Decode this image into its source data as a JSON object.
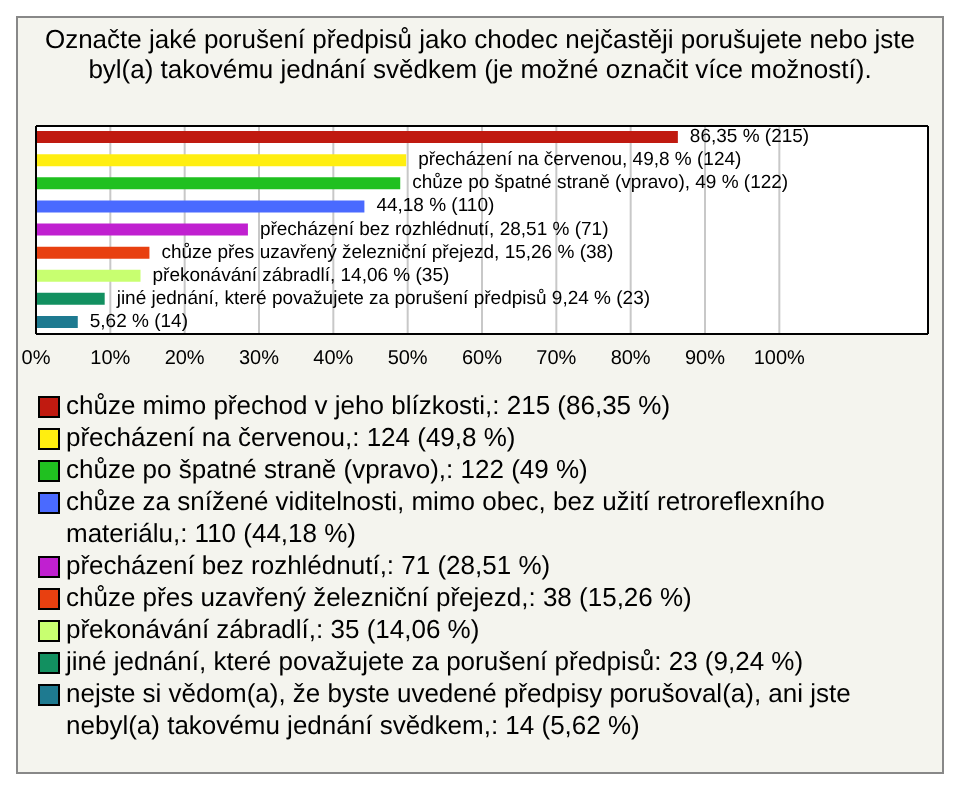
{
  "chart_data": {
    "type": "bar",
    "orientation": "horizontal",
    "stacked": true,
    "title": "Označte jaké porušení předpisů jako chodec nejčastěji porušujete nebo jste byl(a) takovému jednání svědkem (je možné označit více možností).",
    "categories": [
      null,
      null,
      null,
      null,
      null,
      null,
      null,
      null,
      null
    ],
    "series": [
      {
        "name": "chůze mimo přechod v jeho blízkosti,: 215 (86,35 %)",
        "color": "#c01a10",
        "values": [
          86.35,
          null,
          null,
          null,
          null,
          null,
          null,
          null,
          null
        ],
        "value_labels": [
          "86,35 % (215)",
          null,
          null,
          null,
          null,
          null,
          null,
          null,
          null
        ]
      },
      {
        "name": "přecházení na červenou,: 124 (49,8 %)",
        "color": "#ffee10",
        "values": [
          null,
          49.8,
          null,
          null,
          null,
          null,
          null,
          null,
          null
        ],
        "value_labels": [
          null,
          "přecházení na červenou, 49,8 % (124)",
          null,
          null,
          null,
          null,
          null,
          null,
          null
        ]
      },
      {
        "name": "chůze po špatné straně (vpravo),: 122 (49 %)",
        "color": "#20c020",
        "values": [
          null,
          null,
          49,
          null,
          null,
          null,
          null,
          null,
          null
        ],
        "value_labels": [
          null,
          null,
          "chůze po špatné straně (vpravo), 49 % (122)",
          null,
          null,
          null,
          null,
          null,
          null
        ]
      },
      {
        "name": "chůze za snížené viditelnosti, mimo obec, bez užití retroreflexního materiálu,: 110 (44,18 %)",
        "color": "#4a6aff",
        "values": [
          null,
          null,
          null,
          44.18,
          null,
          null,
          null,
          null,
          null
        ],
        "value_labels": [
          null,
          null,
          null,
          "44,18 % (110)",
          null,
          null,
          null,
          null,
          null
        ]
      },
      {
        "name": "přecházení bez rozhlédnutí,: 71 (28,51 %)",
        "color": "#c020d0",
        "values": [
          null,
          null,
          null,
          null,
          28.51,
          null,
          null,
          null,
          null
        ],
        "value_labels": [
          null,
          null,
          null,
          null,
          "přecházení bez rozhlédnutí, 28,51 % (71)",
          null,
          null,
          null,
          null
        ]
      },
      {
        "name": "chůze přes uzavřený železniční přejezd,: 38 (15,26 %)",
        "color": "#e84010",
        "values": [
          null,
          null,
          null,
          null,
          null,
          15.26,
          null,
          null,
          null
        ],
        "value_labels": [
          null,
          null,
          null,
          null,
          null,
          "chůze přes uzavřený železniční přejezd, 15,26 % (38)",
          null,
          null,
          null
        ]
      },
      {
        "name": "překonávání zábradlí,: 35 (14,06 %)",
        "color": "#c8ff70",
        "values": [
          null,
          null,
          null,
          null,
          null,
          null,
          14.06,
          null,
          null
        ],
        "value_labels": [
          null,
          null,
          null,
          null,
          null,
          null,
          "překonávání zábradlí, 14,06 % (35)",
          null,
          null
        ]
      },
      {
        "name": "jiné jednání, které považujete za porušení předpisů: 23 (9,24 %)",
        "color": "#129060",
        "values": [
          null,
          null,
          null,
          null,
          null,
          null,
          null,
          9.24,
          null
        ],
        "value_labels": [
          null,
          null,
          null,
          null,
          null,
          null,
          null,
          "jiné jednání, které považujete za porušení předpisů 9,24 % (23)",
          null
        ]
      },
      {
        "name": "nejste si vědom(a), že byste uvedené předpisy porušoval(a), ani jste nebyl(a) takovému jednání svědkem,: 14 (5,62 %)",
        "color": "#1e7a90",
        "values": [
          null,
          null,
          null,
          null,
          null,
          null,
          null,
          null,
          5.62
        ],
        "value_labels": [
          null,
          null,
          null,
          null,
          null,
          null,
          null,
          null,
          "5,62 % (14)"
        ]
      }
    ],
    "xlim": [
      0,
      120
    ],
    "xticks": [
      {
        "value": 0,
        "label": "0%"
      },
      {
        "value": 10,
        "label": "10%"
      },
      {
        "value": 20,
        "label": "20%"
      },
      {
        "value": 30,
        "label": "30%"
      },
      {
        "value": 40,
        "label": "40%"
      },
      {
        "value": 50,
        "label": "50%"
      },
      {
        "value": 60,
        "label": "60%"
      },
      {
        "value": 70,
        "label": "70%"
      },
      {
        "value": 80,
        "label": "80%"
      },
      {
        "value": 90,
        "label": "90%"
      },
      {
        "value": 100,
        "label": "100%"
      }
    ],
    "tick_labels": "x",
    "grid": "x",
    "legend": "bottom"
  }
}
